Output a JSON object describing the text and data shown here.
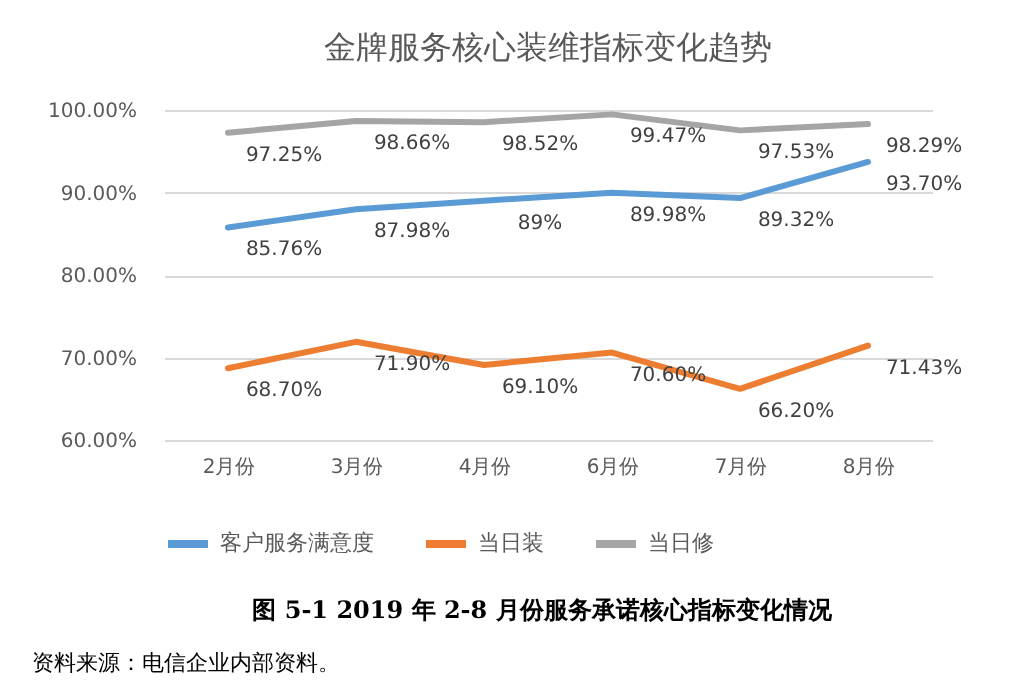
{
  "chart_data": {
    "type": "line",
    "title": "金牌服务核心装维指标变化趋势",
    "categories": [
      "2月份",
      "3月份",
      "4月份",
      "6月份",
      "7月份",
      "8月份"
    ],
    "series": [
      {
        "name": "客户服务满意度",
        "color": "#5b9bd5",
        "values": [
          85.76,
          87.98,
          89,
          89.98,
          89.32,
          93.7
        ],
        "value_labels": [
          "85.76%",
          "87.98%",
          "89%",
          "89.98%",
          "89.32%",
          "93.70%"
        ]
      },
      {
        "name": "当日装",
        "color": "#ed7d31",
        "values": [
          68.7,
          71.9,
          69.1,
          70.6,
          66.2,
          71.43
        ],
        "value_labels": [
          "68.70%",
          "71.90%",
          "69.10%",
          "70.60%",
          "66.20%",
          "71.43%"
        ]
      },
      {
        "name": "当日修",
        "color": "#a5a5a5",
        "values": [
          97.25,
          98.66,
          98.52,
          99.47,
          97.53,
          98.29
        ],
        "value_labels": [
          "97.25%",
          "98.66%",
          "98.52%",
          "99.47%",
          "97.53%",
          "98.29%"
        ]
      }
    ],
    "ylim": [
      60,
      100
    ],
    "yticks": [
      {
        "value": 60,
        "label": "60.00%"
      },
      {
        "value": 70,
        "label": "70.00%"
      },
      {
        "value": 80,
        "label": "80.00%"
      },
      {
        "value": 90,
        "label": "90.00%"
      },
      {
        "value": 100,
        "label": "100.00%"
      }
    ],
    "grid": "y",
    "legend": "bottom",
    "marker": "none",
    "line_style": "solid",
    "annotations": [
      "图 5-1 2019 年 2-8 月份服务承诺核心指标变化情况",
      "资料来源：电信企业内部资料。"
    ]
  }
}
